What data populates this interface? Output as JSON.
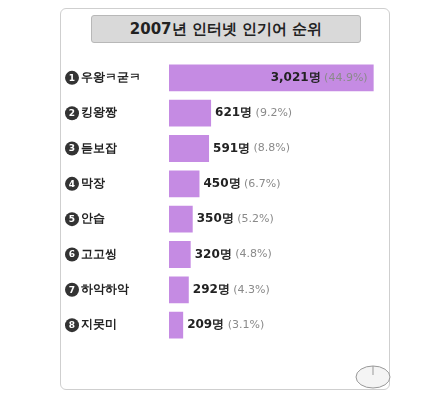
{
  "chart_data": {
    "type": "bar",
    "title": "2007년 인터넷 인기어 순위",
    "orientation": "horizontal",
    "categories": [
      "우왕ㅋ굳ㅋ",
      "킹왕짱",
      "듣보잡",
      "막장",
      "안습",
      "고고씽",
      "하악하악",
      "지못미"
    ],
    "ranks": [
      1,
      2,
      3,
      4,
      5,
      6,
      7,
      8
    ],
    "values": [
      3021,
      621,
      591,
      450,
      350,
      320,
      292,
      209
    ],
    "value_labels": [
      "3,021명 (44.9%)",
      "621명 (9.2%)",
      "591명 (8.8%)",
      "450명 (6.7%)",
      "350명 (5.2%)",
      "320명 (4.8%)",
      "292명 (4.3%)",
      "209명 (3.1%)"
    ],
    "color": "#c58be3",
    "xlim": [
      0,
      3100
    ],
    "data_labels": true,
    "tick_labels": "y",
    "grid": false
  }
}
